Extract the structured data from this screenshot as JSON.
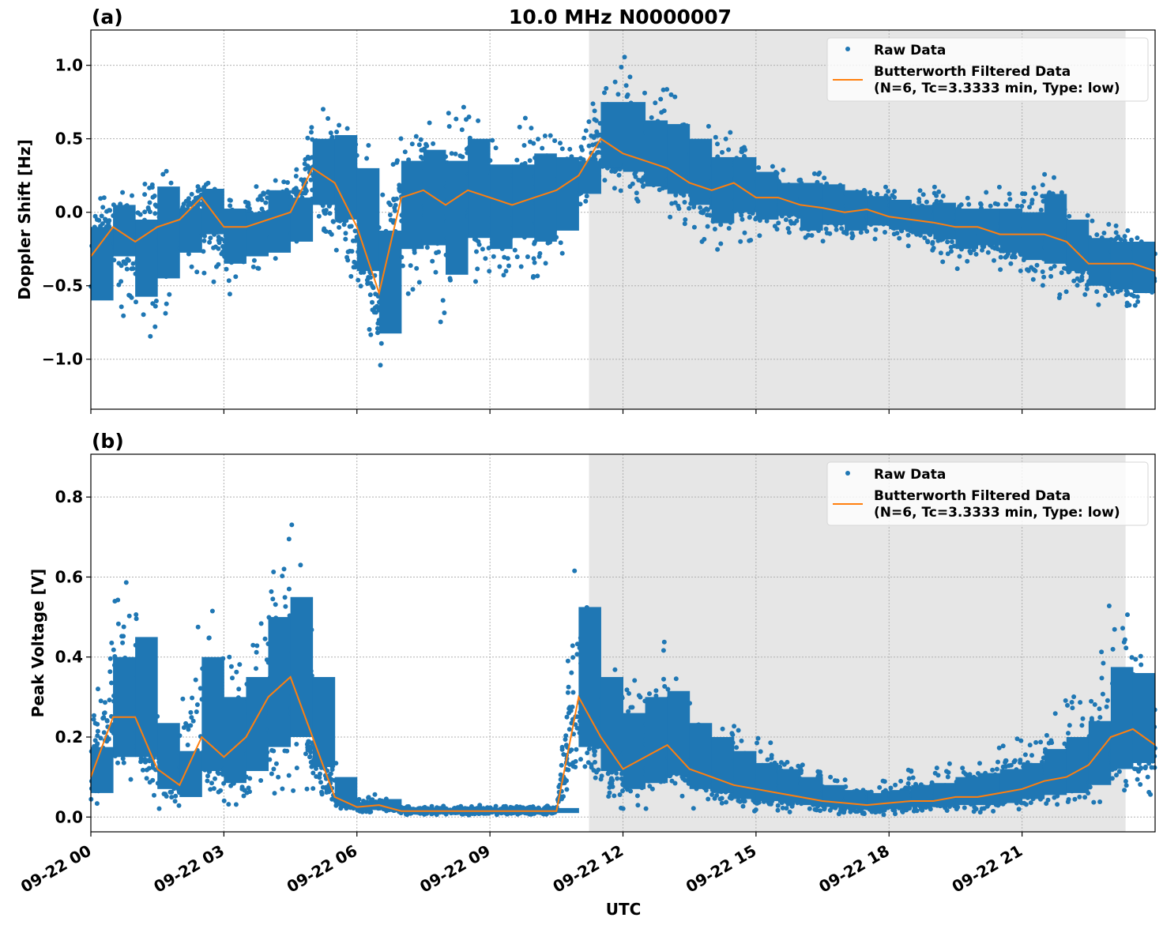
{
  "figure": {
    "title": "10.0 MHz N0000007",
    "xlabel": "UTC"
  },
  "colors": {
    "raw": "#1f77b4",
    "filtered": "#ff7f0e",
    "shade": "#e6e6e6",
    "grid": "#b0b0b0"
  },
  "chart_data": [
    {
      "type": "scatter",
      "panel_label": "(a)",
      "ylabel": "Doppler Shift [Hz]",
      "ylim": [
        -1.34,
        1.24
      ],
      "yticks": [
        1.0,
        0.5,
        0.0,
        -0.5,
        -1.0
      ],
      "ytick_labels": [
        "1.0",
        "0.5",
        "0.0",
        "−0.5",
        "−1.0"
      ],
      "xlim": [
        "09-22 00:00",
        "09-23 00:00"
      ],
      "xticks": [
        "09-22 00",
        "09-22 03",
        "09-22 06",
        "09-22 09",
        "09-22 12",
        "09-22 15",
        "09-22 18",
        "09-22 21"
      ],
      "grid": true,
      "shaded_region": [
        "09-22 11:14",
        "09-22 23:20"
      ],
      "legend": {
        "placement": "top-right",
        "entries": [
          "Raw Data",
          "Butterworth Filtered Data",
          "(N=6, Tc=3.3333 min, Type: low)"
        ]
      },
      "x": [
        "00:00",
        "00:30",
        "01:00",
        "01:30",
        "02:00",
        "02:30",
        "03:00",
        "03:30",
        "04:00",
        "04:30",
        "05:00",
        "05:30",
        "06:00",
        "06:30",
        "07:00",
        "07:30",
        "08:00",
        "08:30",
        "09:00",
        "09:30",
        "10:00",
        "10:30",
        "11:00",
        "11:30",
        "12:00",
        "12:30",
        "13:00",
        "13:30",
        "14:00",
        "14:30",
        "15:00",
        "15:30",
        "16:00",
        "16:30",
        "17:00",
        "17:30",
        "18:00",
        "18:30",
        "19:00",
        "19:30",
        "20:00",
        "20:30",
        "21:00",
        "21:30",
        "22:00",
        "22:30",
        "23:00",
        "23:30",
        "24:00"
      ],
      "series": [
        {
          "name": "Butterworth Filtered Data",
          "kind": "line",
          "values": [
            -0.3,
            -0.1,
            -0.2,
            -0.1,
            -0.05,
            0.1,
            -0.1,
            -0.1,
            -0.05,
            0.0,
            0.3,
            0.2,
            -0.1,
            -0.55,
            0.1,
            0.15,
            0.05,
            0.15,
            0.1,
            0.05,
            0.1,
            0.15,
            0.25,
            0.5,
            0.4,
            0.35,
            0.3,
            0.2,
            0.15,
            0.2,
            0.1,
            0.1,
            0.05,
            0.03,
            0.0,
            0.02,
            -0.03,
            -0.05,
            -0.07,
            -0.1,
            -0.1,
            -0.15,
            -0.15,
            -0.15,
            -0.2,
            -0.35,
            -0.35,
            -0.35,
            -0.4
          ]
        },
        {
          "name": "Raw Data",
          "kind": "scatter-range",
          "min": [
            -0.9,
            -0.5,
            -0.95,
            -0.8,
            -0.5,
            -0.4,
            -0.6,
            -0.5,
            -0.5,
            -0.4,
            -0.2,
            -0.3,
            -0.7,
            -1.1,
            -0.6,
            -0.6,
            -0.9,
            -0.5,
            -0.6,
            -0.4,
            -0.5,
            -0.4,
            0.0,
            0.1,
            0.15,
            0.0,
            -0.05,
            -0.1,
            -0.3,
            -0.2,
            -0.2,
            -0.15,
            -0.3,
            -0.2,
            -0.25,
            -0.2,
            -0.2,
            -0.25,
            -0.3,
            -0.4,
            -0.35,
            -0.4,
            -0.5,
            -0.55,
            -0.6,
            -0.65,
            -0.7,
            -0.75,
            -0.6
          ],
          "max": [
            0.1,
            0.2,
            0.1,
            0.45,
            0.1,
            0.22,
            0.15,
            0.1,
            0.35,
            0.2,
            0.7,
            0.85,
            0.7,
            0.3,
            0.6,
            0.7,
            0.65,
            0.85,
            0.55,
            0.6,
            0.7,
            0.6,
            0.45,
            1.0,
            1.1,
            0.9,
            0.9,
            0.8,
            0.6,
            0.55,
            0.45,
            0.3,
            0.35,
            0.35,
            0.3,
            0.2,
            0.2,
            0.15,
            0.2,
            0.15,
            0.15,
            0.2,
            0.15,
            0.4,
            0.1,
            0.0,
            -0.05,
            -0.05,
            -0.2
          ]
        }
      ]
    },
    {
      "type": "scatter",
      "panel_label": "(b)",
      "ylabel": "Peak Voltage [V]",
      "ylim": [
        -0.037,
        0.907
      ],
      "yticks": [
        0.8,
        0.6,
        0.4,
        0.2,
        0.0
      ],
      "ytick_labels": [
        "0.8",
        "0.6",
        "0.4",
        "0.2",
        "0.0"
      ],
      "xlim": [
        "09-22 00:00",
        "09-23 00:00"
      ],
      "xticks": [
        "09-22 00",
        "09-22 03",
        "09-22 06",
        "09-22 09",
        "09-22 12",
        "09-22 15",
        "09-22 18",
        "09-22 21"
      ],
      "grid": true,
      "shaded_region": [
        "09-22 11:14",
        "09-22 23:20"
      ],
      "legend": {
        "placement": "top-right",
        "entries": [
          "Raw Data",
          "Butterworth Filtered Data",
          "(N=6, Tc=3.3333 min, Type: low)"
        ]
      },
      "x": [
        "00:00",
        "00:30",
        "01:00",
        "01:30",
        "02:00",
        "02:30",
        "03:00",
        "03:30",
        "04:00",
        "04:30",
        "05:00",
        "05:30",
        "06:00",
        "06:30",
        "07:00",
        "07:30",
        "08:00",
        "08:30",
        "09:00",
        "09:30",
        "10:00",
        "10:30",
        "11:00",
        "11:30",
        "12:00",
        "12:30",
        "13:00",
        "13:30",
        "14:00",
        "14:30",
        "15:00",
        "15:30",
        "16:00",
        "16:30",
        "17:00",
        "17:30",
        "18:00",
        "18:30",
        "19:00",
        "19:30",
        "20:00",
        "20:30",
        "21:00",
        "21:30",
        "22:00",
        "22:30",
        "23:00",
        "23:30",
        "24:00"
      ],
      "series": [
        {
          "name": "Butterworth Filtered Data",
          "kind": "line",
          "values": [
            0.1,
            0.25,
            0.25,
            0.12,
            0.08,
            0.2,
            0.15,
            0.2,
            0.3,
            0.35,
            0.2,
            0.05,
            0.025,
            0.03,
            0.015,
            0.015,
            0.015,
            0.015,
            0.015,
            0.015,
            0.015,
            0.015,
            0.3,
            0.2,
            0.12,
            0.15,
            0.18,
            0.12,
            0.1,
            0.08,
            0.07,
            0.06,
            0.05,
            0.04,
            0.035,
            0.03,
            0.035,
            0.04,
            0.04,
            0.05,
            0.05,
            0.06,
            0.07,
            0.09,
            0.1,
            0.13,
            0.2,
            0.22,
            0.18
          ]
        },
        {
          "name": "Raw Data",
          "kind": "scatter-range",
          "min": [
            0.02,
            0.05,
            0.05,
            0.02,
            0.02,
            0.03,
            0.02,
            0.03,
            0.05,
            0.05,
            0.05,
            0.02,
            0.01,
            0.01,
            0.005,
            0.005,
            0.005,
            0.005,
            0.005,
            0.005,
            0.005,
            0.005,
            0.05,
            0.03,
            0.02,
            0.02,
            0.03,
            0.02,
            0.02,
            0.01,
            0.01,
            0.01,
            0.01,
            0.01,
            0.005,
            0.005,
            0.005,
            0.01,
            0.01,
            0.01,
            0.01,
            0.01,
            0.02,
            0.02,
            0.02,
            0.03,
            0.04,
            0.05,
            0.05
          ],
          "max": [
            0.25,
            0.55,
            0.65,
            0.35,
            0.25,
            0.6,
            0.45,
            0.5,
            0.7,
            0.75,
            0.5,
            0.15,
            0.05,
            0.06,
            0.03,
            0.03,
            0.03,
            0.03,
            0.03,
            0.03,
            0.03,
            0.03,
            0.75,
            0.5,
            0.4,
            0.45,
            0.45,
            0.35,
            0.3,
            0.25,
            0.2,
            0.18,
            0.15,
            0.12,
            0.1,
            0.09,
            0.1,
            0.12,
            0.13,
            0.15,
            0.17,
            0.18,
            0.2,
            0.25,
            0.3,
            0.35,
            0.55,
            0.5,
            0.45
          ]
        }
      ]
    }
  ]
}
